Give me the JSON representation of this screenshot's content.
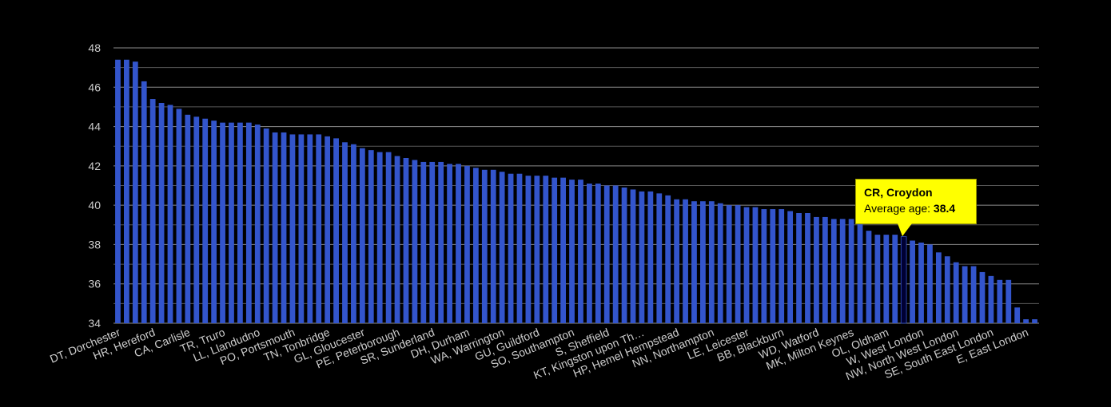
{
  "chart_data": {
    "type": "bar",
    "title": "",
    "xlabel": "",
    "ylabel": "",
    "ylim": [
      34,
      48
    ],
    "yticks": [
      34,
      36,
      38,
      40,
      42,
      44,
      46,
      48
    ],
    "grid": true,
    "bar_color": "#3355cc",
    "highlight_color": "#000033",
    "tick_label_color": "#cccccc",
    "grid_color": "#ffffff",
    "x_tick_labels": [
      {
        "index": 0,
        "label": "DT, Dorchester"
      },
      {
        "index": 4,
        "label": "HR, Hereford"
      },
      {
        "index": 8,
        "label": "CA, Carlisle"
      },
      {
        "index": 12,
        "label": "TR, Truro"
      },
      {
        "index": 16,
        "label": "LL, Llandudno"
      },
      {
        "index": 20,
        "label": "PO, Portsmouth"
      },
      {
        "index": 24,
        "label": "TN, Tonbridge"
      },
      {
        "index": 28,
        "label": "GL, Gloucester"
      },
      {
        "index": 32,
        "label": "PE, Peterborough"
      },
      {
        "index": 36,
        "label": "SR, Sunderland"
      },
      {
        "index": 40,
        "label": "DH, Durham"
      },
      {
        "index": 44,
        "label": "WA, Warrington"
      },
      {
        "index": 48,
        "label": "GU, Guildford"
      },
      {
        "index": 52,
        "label": "SO, Southampton"
      },
      {
        "index": 56,
        "label": "S, Sheffield"
      },
      {
        "index": 60,
        "label": "KT, Kingston upon Th…"
      },
      {
        "index": 64,
        "label": "HP, Hemel Hempstead"
      },
      {
        "index": 68,
        "label": "NN, Northampton"
      },
      {
        "index": 72,
        "label": "LE, Leicester"
      },
      {
        "index": 76,
        "label": "BB, Blackburn"
      },
      {
        "index": 80,
        "label": "WD, Watford"
      },
      {
        "index": 84,
        "label": "MK, Milton Keynes"
      },
      {
        "index": 88,
        "label": "OL, Oldham"
      },
      {
        "index": 92,
        "label": "W, West London"
      },
      {
        "index": 96,
        "label": "NW, North West London"
      },
      {
        "index": 100,
        "label": "SE, South East London"
      },
      {
        "index": 104,
        "label": "E, East London"
      }
    ],
    "values": [
      47.4,
      47.4,
      47.3,
      46.3,
      45.4,
      45.2,
      45.1,
      44.9,
      44.6,
      44.5,
      44.4,
      44.3,
      44.2,
      44.2,
      44.2,
      44.2,
      44.1,
      43.9,
      43.7,
      43.7,
      43.6,
      43.6,
      43.6,
      43.6,
      43.5,
      43.4,
      43.2,
      43.1,
      42.9,
      42.8,
      42.7,
      42.7,
      42.5,
      42.4,
      42.3,
      42.2,
      42.2,
      42.2,
      42.1,
      42.1,
      42.0,
      41.9,
      41.8,
      41.8,
      41.7,
      41.6,
      41.6,
      41.5,
      41.5,
      41.5,
      41.4,
      41.4,
      41.3,
      41.3,
      41.1,
      41.1,
      41.0,
      41.0,
      40.9,
      40.8,
      40.7,
      40.7,
      40.6,
      40.5,
      40.3,
      40.3,
      40.2,
      40.2,
      40.2,
      40.1,
      40.0,
      40.0,
      39.9,
      39.9,
      39.8,
      39.8,
      39.8,
      39.7,
      39.6,
      39.6,
      39.4,
      39.4,
      39.3,
      39.3,
      39.3,
      39.2,
      38.7,
      38.5,
      38.5,
      38.5,
      38.4,
      38.2,
      38.1,
      38.0,
      37.6,
      37.4,
      37.1,
      36.9,
      36.9,
      36.6,
      36.4,
      36.2,
      36.2,
      34.8,
      34.2,
      34.2
    ],
    "highlight_index": 90
  },
  "tooltip": {
    "title": "CR, Croydon",
    "label": "Average age:",
    "value": "38.4"
  }
}
